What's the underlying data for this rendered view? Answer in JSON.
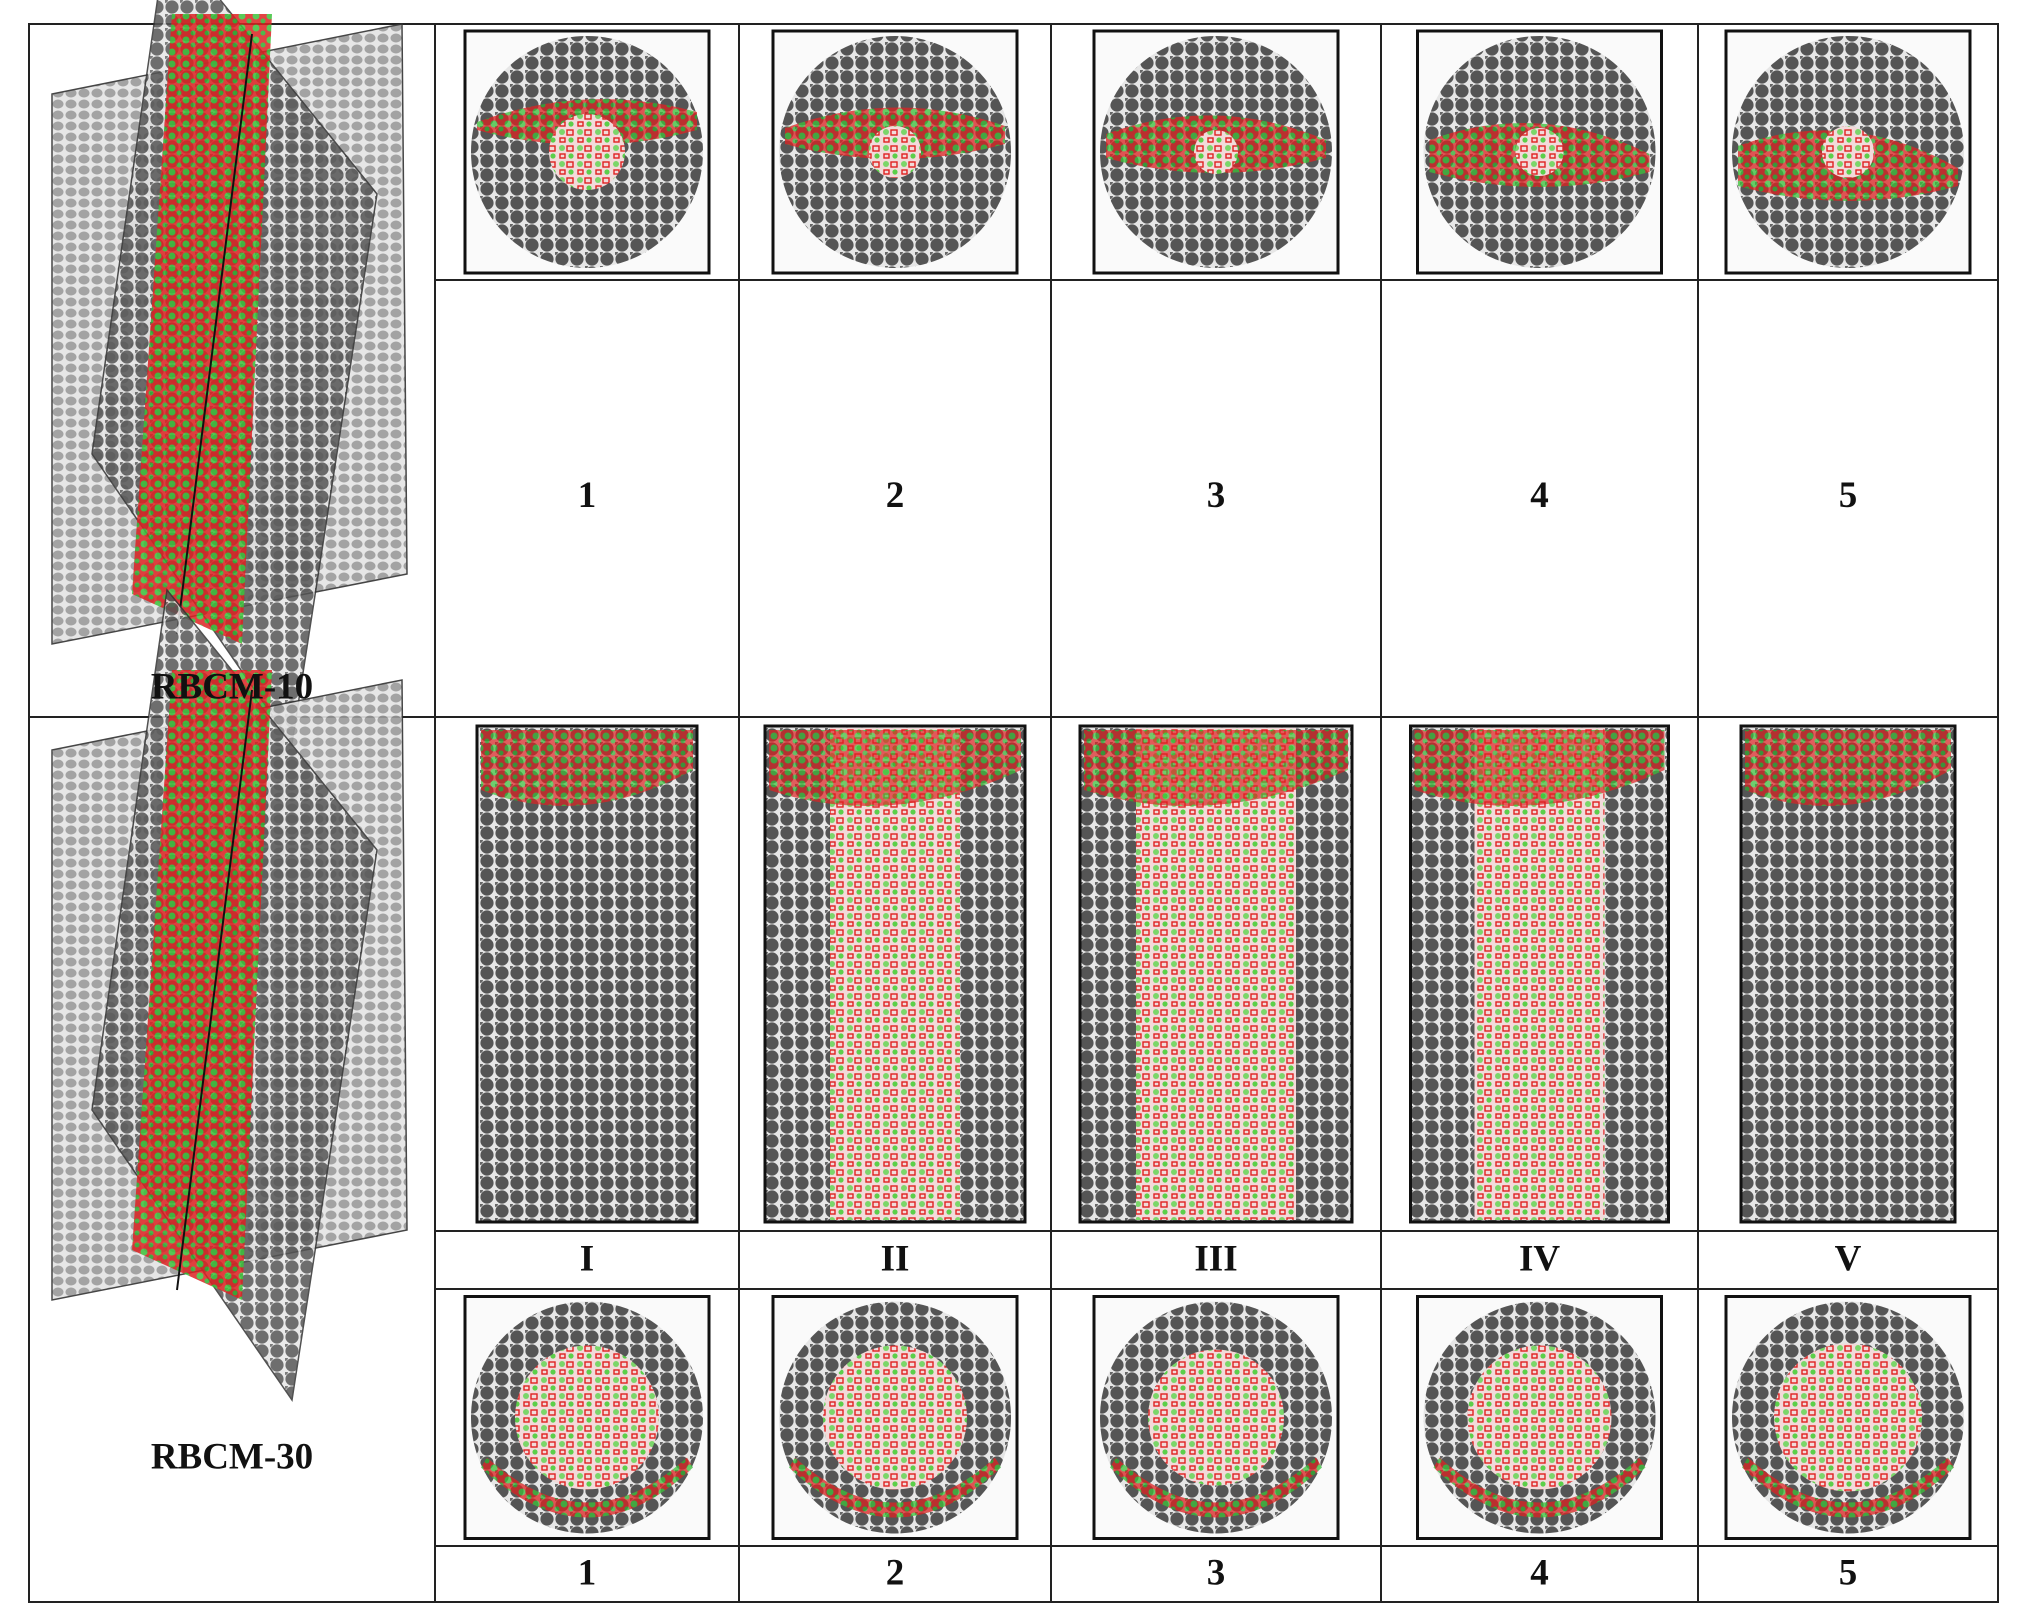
{
  "rows": [
    {
      "sample": "RBCM-10",
      "slice_labels": [
        "1",
        "2",
        "3",
        "4",
        "5"
      ]
    },
    {
      "sample": "RBCM-30",
      "longitudinal_labels": [
        "I",
        "II",
        "III",
        "IV",
        "V"
      ],
      "slice_labels": [
        "1",
        "2",
        "3",
        "4",
        "5"
      ]
    }
  ]
}
